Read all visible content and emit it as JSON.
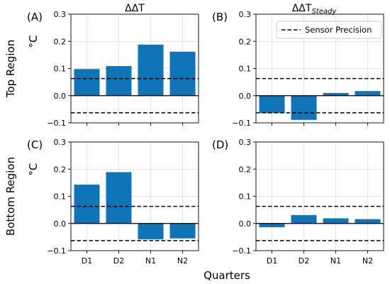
{
  "chart_data": {
    "type": "bar",
    "grid": true,
    "xlabel": "Quarters",
    "legend": {
      "placement": "top-right",
      "entries": [
        {
          "label": "Sensor Precision",
          "style": "dashed",
          "color": "#000000"
        }
      ]
    },
    "reference_lines": {
      "sensor_precision": [
        0.063,
        -0.063
      ],
      "zero": 0
    },
    "bar_color": "#0f75b8",
    "ylim": [
      -0.1,
      0.3
    ],
    "yticks": [
      "0.3",
      "0.2",
      "0.1",
      "0.0",
      "−0.1"
    ],
    "row_labels": [
      "Top Region",
      "Bottom Region"
    ],
    "col_titles": [
      "ΔΔT",
      "ΔΔT"
    ],
    "col_title_subscript": [
      "",
      "Steady"
    ],
    "unit": "°C",
    "categories": [
      "D1",
      "D2",
      "N1",
      "N2"
    ],
    "panels": [
      {
        "letter": "(A)",
        "values": [
          0.098,
          0.109,
          0.188,
          0.162
        ]
      },
      {
        "letter": "(B)",
        "values": [
          -0.064,
          -0.089,
          0.01,
          0.017
        ]
      },
      {
        "letter": "(C)",
        "values": [
          0.143,
          0.189,
          -0.058,
          -0.055
        ]
      },
      {
        "letter": "(D)",
        "values": [
          -0.014,
          0.031,
          0.019,
          0.016
        ]
      }
    ]
  }
}
